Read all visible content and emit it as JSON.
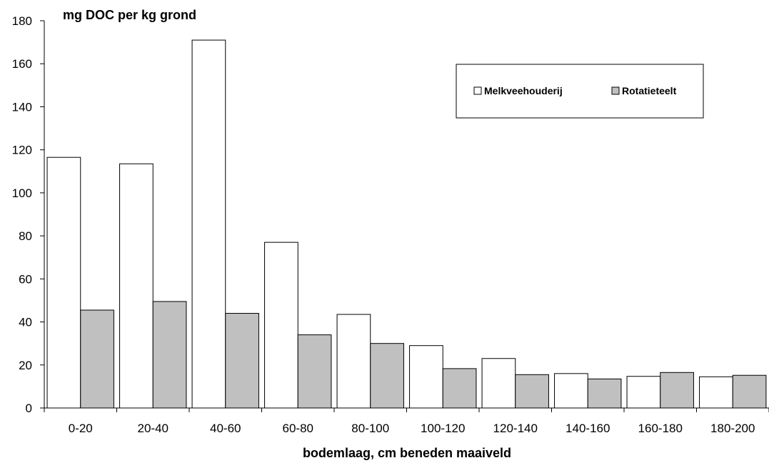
{
  "chart_data": {
    "type": "bar",
    "title": "",
    "ylabel": "mg DOC per kg grond",
    "xlabel": "bodemlaag, cm beneden maaiveld",
    "ylim": [
      0,
      180
    ],
    "yticks": [
      0,
      20,
      40,
      60,
      80,
      100,
      120,
      140,
      160,
      180
    ],
    "categories": [
      "0-20",
      "20-40",
      "40-60",
      "60-80",
      "80-100",
      "100-120",
      "120-140",
      "140-160",
      "160-180",
      "180-200"
    ],
    "series": [
      {
        "name": "Melkveehouderij",
        "color": "#ffffff",
        "values": [
          116.5,
          113.5,
          171,
          77,
          43.5,
          29,
          23,
          16,
          14.7,
          14.5
        ]
      },
      {
        "name": "Rotatieteelt",
        "color": "#c0c0c0",
        "values": [
          45.5,
          49.5,
          44,
          34,
          30,
          18.3,
          15.5,
          13.5,
          16.5,
          15.2
        ]
      }
    ],
    "grid": false,
    "legend_position": "top-right"
  }
}
